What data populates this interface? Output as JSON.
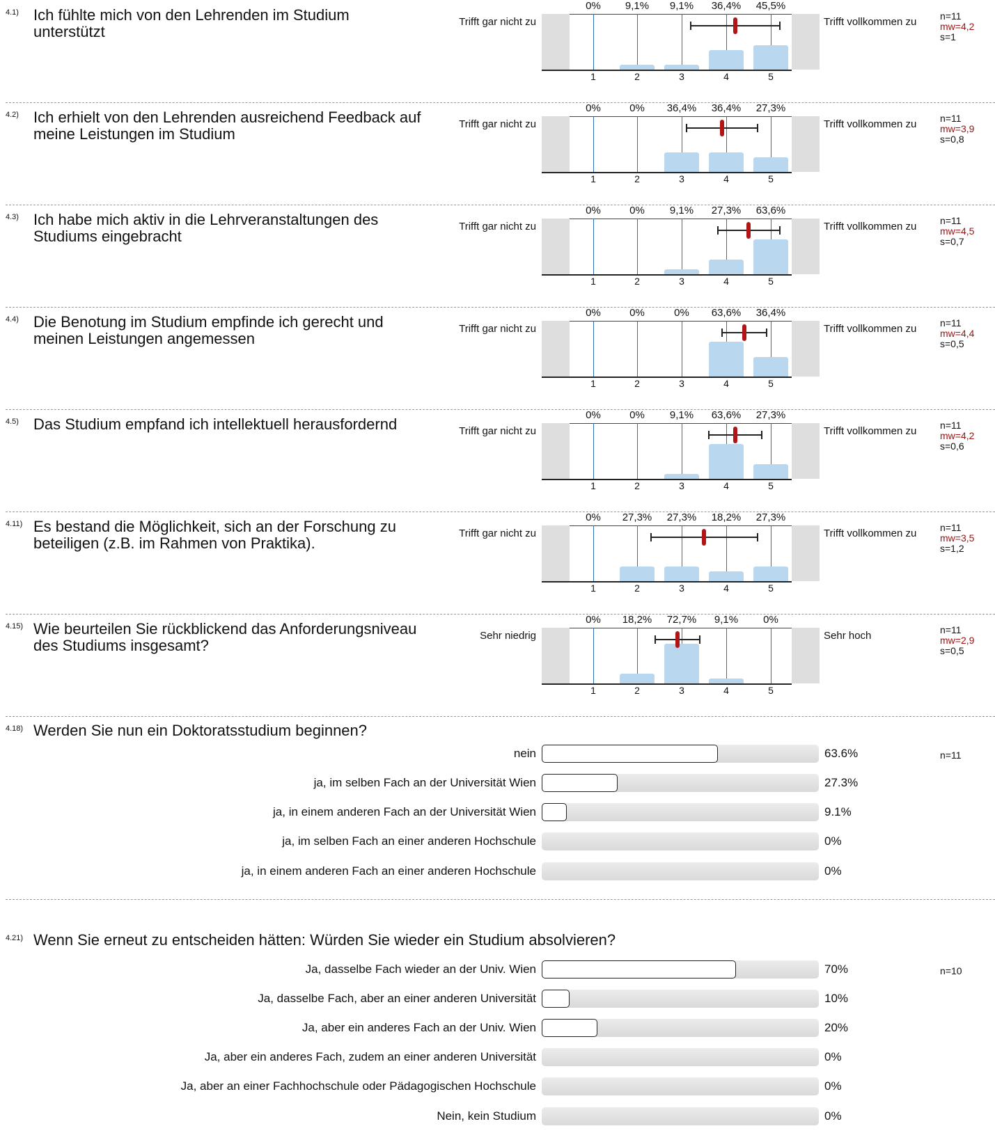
{
  "chart_data": [
    {
      "type": "bar",
      "id": "4.1)",
      "title": "Ich fühlte mich von den Lehrenden im Studium unterstützt",
      "left_label": "Trifft gar nicht zu",
      "right_label": "Trifft vollkommen zu",
      "categories": [
        "1",
        "2",
        "3",
        "4",
        "5"
      ],
      "values": [
        0,
        9.1,
        9.1,
        36.4,
        45.5
      ],
      "value_labels": [
        "0%",
        "9,1%",
        "9,1%",
        "36,4%",
        "45,5%"
      ],
      "n": "n=11",
      "mw": "mw=4,2",
      "s": "s=1",
      "mean": 4.2,
      "sd": 1.0,
      "ylim": [
        0,
        100
      ]
    },
    {
      "type": "bar",
      "id": "4.2)",
      "title": "Ich erhielt von den Lehrenden ausreichend Feedback auf meine Leistungen im Studium",
      "left_label": "Trifft gar nicht zu",
      "right_label": "Trifft vollkommen zu",
      "categories": [
        "1",
        "2",
        "3",
        "4",
        "5"
      ],
      "values": [
        0,
        0,
        36.4,
        36.4,
        27.3
      ],
      "value_labels": [
        "0%",
        "0%",
        "36,4%",
        "36,4%",
        "27,3%"
      ],
      "n": "n=11",
      "mw": "mw=3,9",
      "s": "s=0,8",
      "mean": 3.9,
      "sd": 0.8,
      "ylim": [
        0,
        100
      ]
    },
    {
      "type": "bar",
      "id": "4.3)",
      "title": "Ich habe mich aktiv in die Lehrveranstaltungen des Studiums eingebracht",
      "left_label": "Trifft gar nicht zu",
      "right_label": "Trifft vollkommen zu",
      "categories": [
        "1",
        "2",
        "3",
        "4",
        "5"
      ],
      "values": [
        0,
        0,
        9.1,
        27.3,
        63.6
      ],
      "value_labels": [
        "0%",
        "0%",
        "9,1%",
        "27,3%",
        "63,6%"
      ],
      "n": "n=11",
      "mw": "mw=4,5",
      "s": "s=0,7",
      "mean": 4.5,
      "sd": 0.7,
      "ylim": [
        0,
        100
      ]
    },
    {
      "type": "bar",
      "id": "4.4)",
      "title": "Die Benotung im Studium empfinde ich gerecht und meinen Leistungen angemessen",
      "left_label": "Trifft gar nicht zu",
      "right_label": "Trifft vollkommen zu",
      "categories": [
        "1",
        "2",
        "3",
        "4",
        "5"
      ],
      "values": [
        0,
        0,
        0,
        63.6,
        36.4
      ],
      "value_labels": [
        "0%",
        "0%",
        "0%",
        "63,6%",
        "36,4%"
      ],
      "n": "n=11",
      "mw": "mw=4,4",
      "s": "s=0,5",
      "mean": 4.4,
      "sd": 0.5,
      "ylim": [
        0,
        100
      ]
    },
    {
      "type": "bar",
      "id": "4.5)",
      "title": "Das Studium empfand ich intellektuell herausfordernd",
      "left_label": "Trifft gar nicht zu",
      "right_label": "Trifft vollkommen zu",
      "categories": [
        "1",
        "2",
        "3",
        "4",
        "5"
      ],
      "values": [
        0,
        0,
        9.1,
        63.6,
        27.3
      ],
      "value_labels": [
        "0%",
        "0%",
        "9,1%",
        "63,6%",
        "27,3%"
      ],
      "n": "n=11",
      "mw": "mw=4,2",
      "s": "s=0,6",
      "mean": 4.2,
      "sd": 0.6,
      "ylim": [
        0,
        100
      ]
    },
    {
      "type": "bar",
      "id": "4.11)",
      "title": "Es bestand die Möglichkeit, sich an der Forschung zu beteiligen (z.B. im Rahmen von Praktika).",
      "left_label": "Trifft gar nicht zu",
      "right_label": "Trifft vollkommen zu",
      "categories": [
        "1",
        "2",
        "3",
        "4",
        "5"
      ],
      "values": [
        0,
        27.3,
        27.3,
        18.2,
        27.3
      ],
      "value_labels": [
        "0%",
        "27,3%",
        "27,3%",
        "18,2%",
        "27,3%"
      ],
      "n": "n=11",
      "mw": "mw=3,5",
      "s": "s=1,2",
      "mean": 3.5,
      "sd": 1.2,
      "ylim": [
        0,
        100
      ]
    },
    {
      "type": "bar",
      "id": "4.15)",
      "title": "Wie beurteilen Sie rückblickend das Anforderungsniveau des Studiums insgesamt?",
      "left_label": "Sehr niedrig",
      "right_label": "Sehr hoch",
      "categories": [
        "1",
        "2",
        "3",
        "4",
        "5"
      ],
      "values": [
        0,
        18.2,
        72.7,
        9.1,
        0
      ],
      "value_labels": [
        "0%",
        "18,2%",
        "72,7%",
        "9,1%",
        "0%"
      ],
      "n": "n=11",
      "mw": "mw=2,9",
      "s": "s=0,5",
      "mean": 2.9,
      "sd": 0.5,
      "ylim": [
        0,
        100
      ]
    },
    {
      "type": "bar",
      "orientation": "horizontal",
      "id": "4.18)",
      "title": "Werden Sie nun ein Doktoratsstudium beginnen?",
      "n": "n=11",
      "categories": [
        "nein",
        "ja, im selben Fach an der Universität Wien",
        "ja, in einem anderen Fach an der Universität Wien",
        "ja, im selben Fach an einer anderen Hochschule",
        "ja, in einem anderen Fach an einer anderen Hochschule"
      ],
      "values": [
        63.6,
        27.3,
        9.1,
        0,
        0
      ],
      "value_labels": [
        "63.6%",
        "27.3%",
        "9.1%",
        "0%",
        "0%"
      ],
      "xlim": [
        0,
        100
      ]
    },
    {
      "type": "bar",
      "orientation": "horizontal",
      "id": "4.21)",
      "title": "Wenn Sie erneut zu entscheiden hätten: Würden Sie wieder ein Studium absolvieren?",
      "n": "n=10",
      "categories": [
        "Ja, dasselbe Fach wieder an der Univ. Wien",
        "Ja, dasselbe Fach, aber an einer anderen Universität",
        "Ja, aber ein anderes Fach an der Univ. Wien",
        "Ja, aber ein anderes Fach, zudem an einer anderen Universität",
        "Ja, aber an einer Fachhochschule oder Pädagogischen Hochschule",
        "Nein, kein Studium"
      ],
      "values": [
        70,
        10,
        20,
        0,
        0,
        0
      ],
      "value_labels": [
        "70%",
        "10%",
        "20%",
        "0%",
        "0%",
        "0%"
      ],
      "xlim": [
        0,
        100
      ]
    }
  ],
  "colors": {
    "bar": "#b9d7ef",
    "gridline": "#2d6db6",
    "mean": "#b11616",
    "mw_text": "#a01212",
    "frame": "#dedede"
  }
}
